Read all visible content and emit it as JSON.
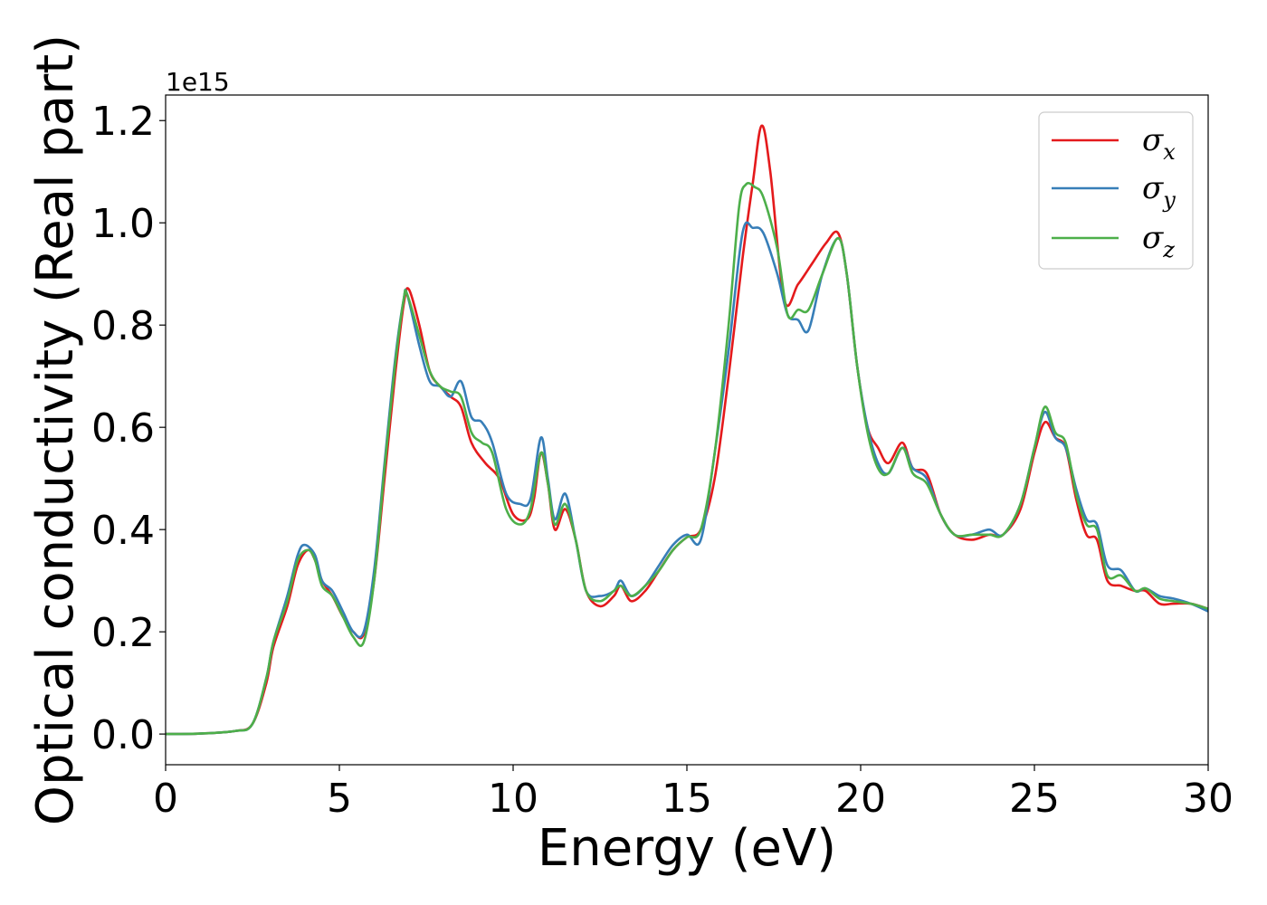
{
  "chart_data": {
    "type": "line",
    "xlabel": "Energy (eV)",
    "ylabel": "Optical conductivity (Real part)",
    "y_offset_label": "1e15",
    "xlim": [
      0,
      30
    ],
    "ylim": [
      -0.06,
      1.25
    ],
    "xticks": [
      0,
      5,
      10,
      15,
      20,
      25,
      30
    ],
    "xtick_labels": [
      "0",
      "5",
      "10",
      "15",
      "20",
      "25",
      "30"
    ],
    "yticks": [
      0.0,
      0.2,
      0.4,
      0.6,
      0.8,
      1.0,
      1.2
    ],
    "ytick_labels": [
      "0.0",
      "0.2",
      "0.4",
      "0.6",
      "0.8",
      "1.0",
      "1.2"
    ],
    "grid": false,
    "legend_position": "top-right",
    "series": [
      {
        "name": "σx",
        "sub": "x",
        "color": "#e41a1c",
        "points": [
          [
            0,
            0
          ],
          [
            1,
            0.001
          ],
          [
            2,
            0.006
          ],
          [
            2.5,
            0.02
          ],
          [
            2.9,
            0.1
          ],
          [
            3.1,
            0.17
          ],
          [
            3.5,
            0.25
          ],
          [
            3.8,
            0.33
          ],
          [
            4.1,
            0.36
          ],
          [
            4.3,
            0.34
          ],
          [
            4.5,
            0.3
          ],
          [
            4.8,
            0.27
          ],
          [
            5.1,
            0.23
          ],
          [
            5.4,
            0.2
          ],
          [
            5.7,
            0.195
          ],
          [
            6.0,
            0.3
          ],
          [
            6.3,
            0.5
          ],
          [
            6.6,
            0.7
          ],
          [
            6.85,
            0.84
          ],
          [
            7.0,
            0.87
          ],
          [
            7.3,
            0.8
          ],
          [
            7.6,
            0.71
          ],
          [
            7.9,
            0.68
          ],
          [
            8.2,
            0.66
          ],
          [
            8.5,
            0.64
          ],
          [
            8.8,
            0.57
          ],
          [
            9.2,
            0.53
          ],
          [
            9.6,
            0.5
          ],
          [
            10.0,
            0.43
          ],
          [
            10.4,
            0.42
          ],
          [
            10.6,
            0.46
          ],
          [
            10.8,
            0.55
          ],
          [
            11.0,
            0.49
          ],
          [
            11.2,
            0.4
          ],
          [
            11.5,
            0.44
          ],
          [
            11.8,
            0.38
          ],
          [
            12.1,
            0.28
          ],
          [
            12.5,
            0.25
          ],
          [
            12.9,
            0.27
          ],
          [
            13.1,
            0.29
          ],
          [
            13.4,
            0.26
          ],
          [
            13.8,
            0.28
          ],
          [
            14.2,
            0.32
          ],
          [
            14.6,
            0.36
          ],
          [
            15.0,
            0.385
          ],
          [
            15.4,
            0.4
          ],
          [
            15.8,
            0.5
          ],
          [
            16.2,
            0.7
          ],
          [
            16.6,
            0.93
          ],
          [
            16.9,
            1.08
          ],
          [
            17.15,
            1.19
          ],
          [
            17.4,
            1.1
          ],
          [
            17.8,
            0.85
          ],
          [
            18.2,
            0.88
          ],
          [
            18.6,
            0.92
          ],
          [
            19.0,
            0.96
          ],
          [
            19.35,
            0.98
          ],
          [
            19.6,
            0.9
          ],
          [
            19.9,
            0.72
          ],
          [
            20.2,
            0.6
          ],
          [
            20.5,
            0.56
          ],
          [
            20.8,
            0.53
          ],
          [
            21.2,
            0.57
          ],
          [
            21.5,
            0.52
          ],
          [
            21.9,
            0.51
          ],
          [
            22.3,
            0.43
          ],
          [
            22.7,
            0.39
          ],
          [
            23.2,
            0.38
          ],
          [
            23.7,
            0.39
          ],
          [
            24.1,
            0.39
          ],
          [
            24.6,
            0.44
          ],
          [
            25.0,
            0.55
          ],
          [
            25.3,
            0.61
          ],
          [
            25.6,
            0.58
          ],
          [
            25.9,
            0.56
          ],
          [
            26.2,
            0.46
          ],
          [
            26.5,
            0.39
          ],
          [
            26.8,
            0.38
          ],
          [
            27.1,
            0.3
          ],
          [
            27.5,
            0.29
          ],
          [
            27.9,
            0.28
          ],
          [
            28.2,
            0.28
          ],
          [
            28.6,
            0.255
          ],
          [
            29.0,
            0.255
          ],
          [
            29.5,
            0.255
          ],
          [
            30,
            0.245
          ]
        ]
      },
      {
        "name": "σy",
        "sub": "y",
        "color": "#377eb8",
        "points": [
          [
            0,
            0
          ],
          [
            1,
            0.001
          ],
          [
            2,
            0.006
          ],
          [
            2.5,
            0.02
          ],
          [
            2.9,
            0.11
          ],
          [
            3.1,
            0.18
          ],
          [
            3.5,
            0.27
          ],
          [
            3.8,
            0.35
          ],
          [
            4.0,
            0.37
          ],
          [
            4.3,
            0.35
          ],
          [
            4.5,
            0.3
          ],
          [
            4.8,
            0.28
          ],
          [
            5.1,
            0.24
          ],
          [
            5.4,
            0.2
          ],
          [
            5.7,
            0.2
          ],
          [
            6.0,
            0.32
          ],
          [
            6.3,
            0.53
          ],
          [
            6.6,
            0.73
          ],
          [
            6.85,
            0.85
          ],
          [
            6.95,
            0.86
          ],
          [
            7.3,
            0.76
          ],
          [
            7.6,
            0.69
          ],
          [
            7.9,
            0.68
          ],
          [
            8.2,
            0.66
          ],
          [
            8.5,
            0.69
          ],
          [
            8.8,
            0.62
          ],
          [
            9.1,
            0.61
          ],
          [
            9.4,
            0.57
          ],
          [
            9.8,
            0.47
          ],
          [
            10.2,
            0.45
          ],
          [
            10.5,
            0.46
          ],
          [
            10.8,
            0.58
          ],
          [
            11.0,
            0.5
          ],
          [
            11.2,
            0.42
          ],
          [
            11.5,
            0.47
          ],
          [
            11.8,
            0.38
          ],
          [
            12.1,
            0.28
          ],
          [
            12.5,
            0.27
          ],
          [
            12.9,
            0.28
          ],
          [
            13.1,
            0.3
          ],
          [
            13.4,
            0.27
          ],
          [
            13.8,
            0.29
          ],
          [
            14.2,
            0.33
          ],
          [
            14.6,
            0.37
          ],
          [
            15.0,
            0.39
          ],
          [
            15.4,
            0.38
          ],
          [
            15.8,
            0.55
          ],
          [
            16.2,
            0.75
          ],
          [
            16.6,
            0.98
          ],
          [
            16.9,
            0.99
          ],
          [
            17.2,
            0.98
          ],
          [
            17.6,
            0.9
          ],
          [
            17.9,
            0.82
          ],
          [
            18.2,
            0.81
          ],
          [
            18.5,
            0.79
          ],
          [
            18.9,
            0.9
          ],
          [
            19.35,
            0.97
          ],
          [
            19.6,
            0.9
          ],
          [
            19.9,
            0.72
          ],
          [
            20.2,
            0.6
          ],
          [
            20.5,
            0.53
          ],
          [
            20.8,
            0.51
          ],
          [
            21.2,
            0.56
          ],
          [
            21.5,
            0.52
          ],
          [
            21.9,
            0.5
          ],
          [
            22.3,
            0.43
          ],
          [
            22.7,
            0.39
          ],
          [
            23.2,
            0.39
          ],
          [
            23.7,
            0.4
          ],
          [
            24.1,
            0.39
          ],
          [
            24.6,
            0.45
          ],
          [
            25.0,
            0.56
          ],
          [
            25.3,
            0.63
          ],
          [
            25.6,
            0.58
          ],
          [
            25.9,
            0.56
          ],
          [
            26.2,
            0.48
          ],
          [
            26.5,
            0.42
          ],
          [
            26.8,
            0.41
          ],
          [
            27.1,
            0.33
          ],
          [
            27.5,
            0.32
          ],
          [
            27.9,
            0.28
          ],
          [
            28.2,
            0.285
          ],
          [
            28.6,
            0.27
          ],
          [
            29.0,
            0.265
          ],
          [
            29.5,
            0.255
          ],
          [
            30,
            0.24
          ]
        ]
      },
      {
        "name": "σz",
        "sub": "z",
        "color": "#4daf4a",
        "points": [
          [
            0,
            0
          ],
          [
            1,
            0.001
          ],
          [
            2,
            0.006
          ],
          [
            2.5,
            0.02
          ],
          [
            2.9,
            0.11
          ],
          [
            3.1,
            0.18
          ],
          [
            3.5,
            0.26
          ],
          [
            3.8,
            0.34
          ],
          [
            4.1,
            0.36
          ],
          [
            4.3,
            0.34
          ],
          [
            4.5,
            0.29
          ],
          [
            4.8,
            0.27
          ],
          [
            5.1,
            0.23
          ],
          [
            5.4,
            0.19
          ],
          [
            5.7,
            0.18
          ],
          [
            6.0,
            0.3
          ],
          [
            6.3,
            0.52
          ],
          [
            6.6,
            0.72
          ],
          [
            6.85,
            0.85
          ],
          [
            6.95,
            0.86
          ],
          [
            7.3,
            0.78
          ],
          [
            7.6,
            0.71
          ],
          [
            7.9,
            0.68
          ],
          [
            8.2,
            0.67
          ],
          [
            8.5,
            0.66
          ],
          [
            8.8,
            0.59
          ],
          [
            9.1,
            0.57
          ],
          [
            9.4,
            0.55
          ],
          [
            9.8,
            0.44
          ],
          [
            10.2,
            0.41
          ],
          [
            10.5,
            0.44
          ],
          [
            10.8,
            0.55
          ],
          [
            11.0,
            0.49
          ],
          [
            11.2,
            0.41
          ],
          [
            11.5,
            0.45
          ],
          [
            11.8,
            0.38
          ],
          [
            12.1,
            0.28
          ],
          [
            12.5,
            0.26
          ],
          [
            12.9,
            0.28
          ],
          [
            13.1,
            0.29
          ],
          [
            13.4,
            0.27
          ],
          [
            13.8,
            0.29
          ],
          [
            14.2,
            0.32
          ],
          [
            14.6,
            0.36
          ],
          [
            15.0,
            0.385
          ],
          [
            15.4,
            0.4
          ],
          [
            15.8,
            0.55
          ],
          [
            16.2,
            0.8
          ],
          [
            16.5,
            1.03
          ],
          [
            16.7,
            1.075
          ],
          [
            16.95,
            1.07
          ],
          [
            17.2,
            1.05
          ],
          [
            17.6,
            0.95
          ],
          [
            17.9,
            0.82
          ],
          [
            18.2,
            0.83
          ],
          [
            18.5,
            0.83
          ],
          [
            18.9,
            0.9
          ],
          [
            19.35,
            0.97
          ],
          [
            19.6,
            0.9
          ],
          [
            19.9,
            0.72
          ],
          [
            20.2,
            0.59
          ],
          [
            20.5,
            0.52
          ],
          [
            20.8,
            0.51
          ],
          [
            21.2,
            0.56
          ],
          [
            21.5,
            0.51
          ],
          [
            21.9,
            0.49
          ],
          [
            22.3,
            0.43
          ],
          [
            22.7,
            0.39
          ],
          [
            23.2,
            0.39
          ],
          [
            23.7,
            0.39
          ],
          [
            24.1,
            0.39
          ],
          [
            24.6,
            0.45
          ],
          [
            25.0,
            0.56
          ],
          [
            25.3,
            0.64
          ],
          [
            25.6,
            0.59
          ],
          [
            25.9,
            0.57
          ],
          [
            26.2,
            0.47
          ],
          [
            26.5,
            0.41
          ],
          [
            26.8,
            0.4
          ],
          [
            27.1,
            0.31
          ],
          [
            27.5,
            0.31
          ],
          [
            27.9,
            0.28
          ],
          [
            28.2,
            0.285
          ],
          [
            28.6,
            0.265
          ],
          [
            29.0,
            0.26
          ],
          [
            29.5,
            0.255
          ],
          [
            30,
            0.245
          ]
        ]
      }
    ]
  }
}
